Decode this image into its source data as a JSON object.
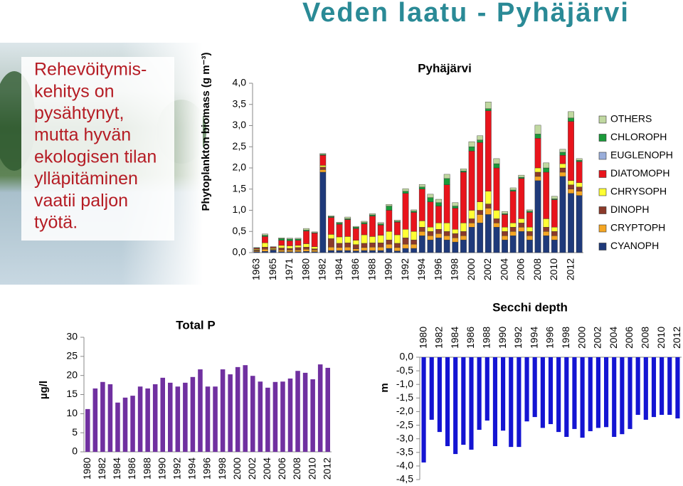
{
  "title": "Veden laatu - Pyhäjärvi",
  "text": {
    "lines": [
      "Rehevöitymis-",
      "kehitys on",
      "pysähtynyt,",
      "mutta hyvän",
      "ekologisen tilan",
      "ylläpitäminen",
      "vaatii paljon",
      "työtä."
    ]
  },
  "chart_data": [
    {
      "type": "bar",
      "stacked": true,
      "title": "Pyhäjärvi",
      "y_label": "Phytoplankton biomass (g m⁻³)",
      "legend": "right",
      "categories": [
        "1963",
        null,
        "1965",
        null,
        "1971",
        null,
        "1980",
        null,
        "1982",
        null,
        "1984",
        null,
        "1986",
        null,
        "1988",
        null,
        "1990",
        null,
        "1992",
        null,
        "1994",
        null,
        "1996",
        null,
        "1998",
        null,
        "2000",
        null,
        "2002",
        null,
        "2004",
        null,
        "2006",
        null,
        "2008",
        null,
        "2010",
        null,
        "2012",
        null
      ],
      "series": [
        {
          "name": "CYANOPH",
          "color": "#1f3a7a",
          "values": [
            0.02,
            0.03,
            0.06,
            0.02,
            0.02,
            0.02,
            0.03,
            0.02,
            1.9,
            0.05,
            0.05,
            0.05,
            0.04,
            0.05,
            0.05,
            0.05,
            0.1,
            0.04,
            0.1,
            0.1,
            0.4,
            0.3,
            0.35,
            0.3,
            0.25,
            0.3,
            0.6,
            0.7,
            0.9,
            0.6,
            0.3,
            0.4,
            0.5,
            0.3,
            1.7,
            0.4,
            0.3,
            1.8,
            1.4,
            1.35
          ]
        },
        {
          "name": "CRYPTOPH",
          "color": "#f5a623",
          "values": [
            0.02,
            0.05,
            0.02,
            0.04,
            0.04,
            0.04,
            0.05,
            0.04,
            0.06,
            0.08,
            0.07,
            0.08,
            0.05,
            0.07,
            0.08,
            0.08,
            0.1,
            0.08,
            0.1,
            0.1,
            0.1,
            0.1,
            0.1,
            0.1,
            0.1,
            0.1,
            0.1,
            0.2,
            0.15,
            0.1,
            0.1,
            0.1,
            0.1,
            0.1,
            0.1,
            0.1,
            0.1,
            0.1,
            0.1,
            0.1
          ]
        },
        {
          "name": "DINOPH",
          "color": "#8b3a2a",
          "values": [
            0.02,
            0.05,
            0.01,
            0.05,
            0.04,
            0.06,
            0.05,
            0.03,
            0.06,
            0.2,
            0.1,
            0.1,
            0.1,
            0.1,
            0.1,
            0.1,
            0.1,
            0.1,
            0.15,
            0.1,
            0.1,
            0.1,
            0.1,
            0.1,
            0.1,
            0.1,
            0.1,
            0.1,
            0.1,
            0.1,
            0.1,
            0.1,
            0.1,
            0.1,
            0.1,
            0.1,
            0.1,
            0.1,
            0.1,
            0.1
          ]
        },
        {
          "name": "CHRYSOPH",
          "color": "#ffff33",
          "values": [
            0.02,
            0.1,
            0.02,
            0.06,
            0.06,
            0.05,
            0.08,
            0.05,
            0.04,
            0.1,
            0.15,
            0.15,
            0.1,
            0.2,
            0.15,
            0.18,
            0.2,
            0.2,
            0.2,
            0.2,
            0.15,
            0.1,
            0.15,
            0.2,
            0.1,
            0.2,
            0.2,
            0.2,
            0.3,
            0.2,
            0.1,
            0.1,
            0.1,
            0.1,
            0.1,
            0.2,
            0.1,
            0.1,
            0.1,
            0.1
          ]
        },
        {
          "name": "DIATOMOPH",
          "color": "#e8141c",
          "values": [
            0.02,
            0.15,
            0.02,
            0.12,
            0.12,
            0.12,
            0.3,
            0.32,
            0.24,
            0.4,
            0.3,
            0.4,
            0.28,
            0.26,
            0.48,
            0.24,
            0.5,
            0.3,
            0.85,
            0.45,
            0.75,
            0.6,
            0.4,
            0.9,
            0.5,
            1.2,
            1.4,
            1.4,
            1.9,
            1.0,
            0.3,
            0.75,
            0.95,
            0.35,
            0.7,
            1.1,
            0.65,
            0.2,
            1.4,
            0.5
          ]
        },
        {
          "name": "EUGLENOPH",
          "color": "#9aaedb",
          "values": [
            0,
            0,
            0,
            0,
            0,
            0,
            0,
            0,
            0,
            0,
            0,
            0,
            0,
            0,
            0,
            0,
            0,
            0,
            0,
            0,
            0,
            0,
            0,
            0,
            0,
            0,
            0,
            0,
            0,
            0,
            0,
            0,
            0,
            0,
            0,
            0,
            0,
            0,
            0,
            0
          ]
        },
        {
          "name": "CHLOROPH",
          "color": "#1a9a3a",
          "values": [
            0.01,
            0.03,
            0.01,
            0.04,
            0.04,
            0.03,
            0.02,
            0.01,
            0.02,
            0.02,
            0.03,
            0.02,
            0.03,
            0.03,
            0.03,
            0.03,
            0.1,
            0.02,
            0.05,
            0.03,
            0.05,
            0.1,
            0.08,
            0.15,
            0.05,
            0.03,
            0.1,
            0.06,
            0.05,
            0.1,
            0.02,
            0.03,
            0.03,
            0.03,
            0.1,
            0.1,
            0.02,
            0.07,
            0.08,
            0.03
          ]
        },
        {
          "name": "OTHERS",
          "color": "#c0d8a0",
          "values": [
            0.01,
            0.03,
            0,
            0.02,
            0.02,
            0.02,
            0.04,
            0.02,
            0.02,
            0.02,
            0.02,
            0.04,
            0.02,
            0.03,
            0.03,
            0.03,
            0.04,
            0.03,
            0.06,
            0.03,
            0.06,
            0.08,
            0.08,
            0.1,
            0.08,
            0.05,
            0.12,
            0.1,
            0.16,
            0.12,
            0.05,
            0.05,
            0.05,
            0.03,
            0.21,
            0.12,
            0.06,
            0.07,
            0.15,
            0.04
          ]
        }
      ],
      "ylim": [
        0,
        4
      ],
      "yticks": [
        {
          "value": 0,
          "label": "0,0"
        },
        {
          "value": 0.5,
          "label": "0,5"
        },
        {
          "value": 1,
          "label": "1,0"
        },
        {
          "value": 1.5,
          "label": "1,5"
        },
        {
          "value": 2,
          "label": "2,0"
        },
        {
          "value": 2.5,
          "label": "2,5"
        },
        {
          "value": 3,
          "label": "3,0"
        },
        {
          "value": 3.5,
          "label": "3,5"
        },
        {
          "value": 4,
          "label": "4,0"
        }
      ]
    },
    {
      "type": "bar",
      "title": "Total P",
      "y_label": "µg/l",
      "color": "#7030a0",
      "categories": [
        "1980",
        null,
        "1982",
        null,
        "1984",
        null,
        "1986",
        null,
        "1988",
        null,
        "1990",
        null,
        "1992",
        null,
        "1994",
        null,
        "1996",
        null,
        "1998",
        null,
        "2000",
        null,
        "2002",
        null,
        "2004",
        null,
        "2006",
        null,
        "2008",
        null,
        "2010",
        null,
        "2012"
      ],
      "values": [
        11.2,
        16.6,
        18.3,
        17.7,
        12.9,
        14.2,
        14.7,
        17.1,
        16.6,
        17.7,
        19.4,
        18.1,
        17.1,
        18.1,
        19.6,
        21.6,
        17.1,
        17.1,
        21.6,
        20.3,
        22.2,
        22.7,
        19.9,
        18.4,
        16.8,
        18.3,
        18.4,
        19.2,
        21.2,
        20.7,
        19.0,
        22.9,
        22.0
      ],
      "ylim": [
        0,
        30
      ],
      "yticks": [
        0,
        5,
        10,
        15,
        20,
        25,
        30
      ]
    },
    {
      "type": "bar",
      "title": "Secchi depth",
      "y_label": "m",
      "color": "#1414d2",
      "categories": [
        "1980",
        null,
        "1982",
        null,
        "1984",
        null,
        "1986",
        null,
        "1988",
        null,
        "1990",
        null,
        "1992",
        null,
        "1994",
        null,
        "1996",
        null,
        "1998",
        null,
        "2000",
        null,
        "2002",
        null,
        "2004",
        null,
        "2006",
        null,
        "2008",
        null,
        "2010",
        null,
        "2012"
      ],
      "values": [
        -3.87,
        -2.3,
        -2.75,
        -3.27,
        -3.56,
        -3.22,
        -3.4,
        -2.67,
        -2.33,
        -3.27,
        -2.7,
        -3.3,
        -3.3,
        -2.36,
        -2.2,
        -2.6,
        -2.46,
        -2.75,
        -2.93,
        -2.64,
        -2.96,
        -2.72,
        -2.6,
        -2.57,
        -2.93,
        -2.83,
        -2.64,
        -2.12,
        -2.3,
        -2.2,
        -2.12,
        -2.12,
        -2.25
      ],
      "ylim": [
        -4.5,
        0
      ],
      "yticks": [
        {
          "value": 0,
          "label": "0,0"
        },
        {
          "value": -0.5,
          "label": "-0,5"
        },
        {
          "value": -1,
          "label": "-1,0"
        },
        {
          "value": -1.5,
          "label": "-1,5"
        },
        {
          "value": -2,
          "label": "-2,0"
        },
        {
          "value": -2.5,
          "label": "-2,5"
        },
        {
          "value": -3,
          "label": "-3,0"
        },
        {
          "value": -3.5,
          "label": "-3,5"
        },
        {
          "value": -4,
          "label": "-4,0"
        },
        {
          "value": -4.5,
          "label": "-4,5"
        }
      ]
    }
  ]
}
